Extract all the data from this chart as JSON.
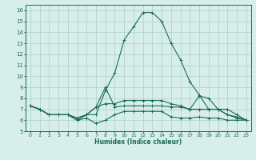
{
  "xlabel": "Humidex (Indice chaleur)",
  "bg_color": "#d8eee8",
  "grid_color": "#b8d8d0",
  "line_color": "#1a6b5a",
  "xlim": [
    -0.5,
    23.5
  ],
  "ylim": [
    5,
    16.5
  ],
  "xticks": [
    0,
    1,
    2,
    3,
    4,
    5,
    6,
    7,
    8,
    9,
    10,
    11,
    12,
    13,
    14,
    15,
    16,
    17,
    18,
    19,
    20,
    21,
    22,
    23
  ],
  "yticks": [
    5,
    6,
    7,
    8,
    9,
    10,
    11,
    12,
    13,
    14,
    15,
    16
  ],
  "series": [
    [
      7.3,
      7.0,
      6.5,
      6.5,
      6.5,
      6.0,
      6.5,
      6.5,
      8.7,
      10.3,
      13.3,
      14.5,
      15.8,
      15.8,
      15.0,
      13.0,
      11.5,
      9.5,
      8.3,
      7.0,
      7.0,
      6.5,
      6.2,
      6.0
    ],
    [
      7.3,
      7.0,
      6.5,
      6.5,
      6.5,
      6.0,
      6.2,
      5.7,
      6.0,
      6.5,
      6.8,
      6.8,
      6.8,
      6.8,
      6.8,
      6.3,
      6.2,
      6.2,
      6.3,
      6.2,
      6.2,
      6.0,
      6.0,
      6.0
    ],
    [
      7.3,
      7.0,
      6.5,
      6.5,
      6.5,
      6.2,
      6.5,
      7.2,
      9.0,
      7.2,
      7.3,
      7.3,
      7.3,
      7.3,
      7.3,
      7.2,
      7.2,
      7.0,
      7.0,
      7.0,
      7.0,
      7.0,
      6.5,
      6.0
    ],
    [
      7.3,
      7.0,
      6.5,
      6.5,
      6.5,
      6.2,
      6.5,
      7.2,
      7.5,
      7.5,
      7.8,
      7.8,
      7.8,
      7.8,
      7.8,
      7.5,
      7.3,
      7.0,
      8.2,
      8.0,
      7.0,
      6.5,
      6.3,
      6.0
    ]
  ]
}
